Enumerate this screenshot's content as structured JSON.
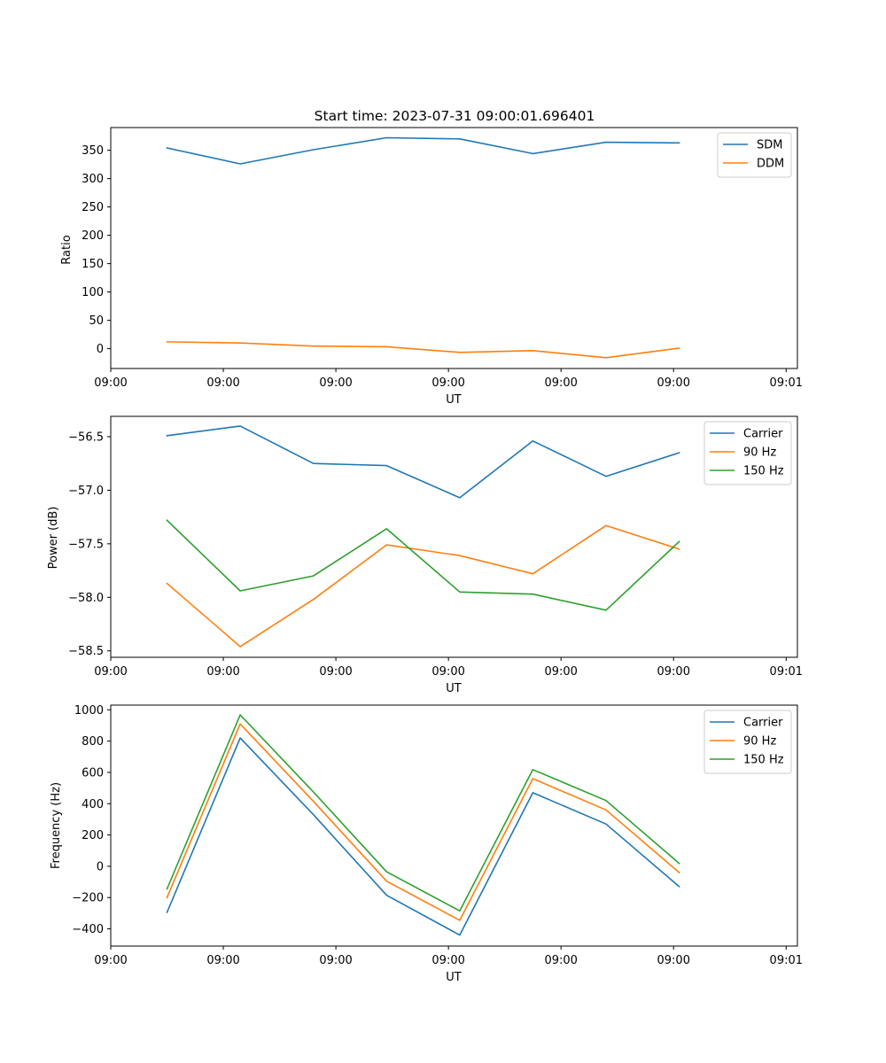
{
  "chart_data": [
    {
      "type": "line",
      "title": "Start time: 2023-07-31 09:00:01.696401",
      "xlabel": "UT",
      "ylabel": "Ratio",
      "xlim": [
        0,
        6.1
      ],
      "x": [
        0.5,
        1.15,
        1.8,
        2.45,
        3.1,
        3.75,
        4.4,
        5.05
      ],
      "xtick_values": [
        0,
        1,
        2,
        3,
        4,
        5,
        6
      ],
      "xtick_labels": [
        "09:00",
        "09:00",
        "09:00",
        "09:00",
        "09:00",
        "09:00",
        "09:01"
      ],
      "ylim": [
        -35,
        390
      ],
      "yticks": [
        0,
        50,
        100,
        150,
        200,
        250,
        300,
        350
      ],
      "legend_position": "top-right",
      "grid": false,
      "series": [
        {
          "name": "SDM",
          "color": "#1f77b4",
          "values": [
            354,
            326,
            351,
            372,
            370,
            344,
            364,
            363
          ]
        },
        {
          "name": "DDM",
          "color": "#ff7f0e",
          "values": [
            12,
            10,
            4.5,
            3.5,
            -6.5,
            -3.5,
            -16,
            1
          ]
        }
      ]
    },
    {
      "type": "line",
      "title": "",
      "xlabel": "UT",
      "ylabel": "Power (dB)",
      "xlim": [
        0,
        6.1
      ],
      "x": [
        0.5,
        1.15,
        1.8,
        2.45,
        3.1,
        3.75,
        4.4,
        5.05
      ],
      "xtick_values": [
        0,
        1,
        2,
        3,
        4,
        5,
        6
      ],
      "xtick_labels": [
        "09:00",
        "09:00",
        "09:00",
        "09:00",
        "09:00",
        "09:00",
        "09:01"
      ],
      "ylim": [
        -58.56,
        -56.31
      ],
      "yticks": [
        -58.5,
        -58.0,
        -57.5,
        -57.0,
        -56.5
      ],
      "ytick_labels": [
        "−58.5",
        "−58.0",
        "−57.5",
        "−57.0",
        "−56.5"
      ],
      "legend_position": "top-right",
      "grid": false,
      "series": [
        {
          "name": "Carrier",
          "color": "#1f77b4",
          "values": [
            -56.49,
            -56.4,
            -56.75,
            -56.77,
            -57.07,
            -56.54,
            -56.87,
            -56.65
          ]
        },
        {
          "name": "90 Hz",
          "color": "#ff7f0e",
          "values": [
            -57.87,
            -58.46,
            -58.02,
            -57.51,
            -57.61,
            -57.78,
            -57.33,
            -57.55
          ]
        },
        {
          "name": "150 Hz",
          "color": "#2ca02c",
          "values": [
            -57.28,
            -57.94,
            -57.8,
            -57.36,
            -57.95,
            -57.97,
            -58.12,
            -57.48
          ]
        }
      ]
    },
    {
      "type": "line",
      "title": "",
      "xlabel": "UT",
      "ylabel": "Frequency (Hz)",
      "xlim": [
        0,
        6.1
      ],
      "x": [
        0.5,
        1.15,
        1.8,
        2.45,
        3.1,
        3.75,
        4.4,
        5.05
      ],
      "xtick_values": [
        0,
        1,
        2,
        3,
        4,
        5,
        6
      ],
      "xtick_labels": [
        "09:00",
        "09:00",
        "09:00",
        "09:00",
        "09:00",
        "09:00",
        "09:01"
      ],
      "ylim": [
        -510,
        1030
      ],
      "yticks": [
        -400,
        -200,
        0,
        200,
        400,
        600,
        800,
        1000
      ],
      "ytick_labels": [
        "−400",
        "−200",
        "0",
        "200",
        "400",
        "600",
        "800",
        "1000"
      ],
      "legend_position": "top-right",
      "grid": false,
      "series": [
        {
          "name": "Carrier",
          "color": "#1f77b4",
          "values": [
            -295,
            820,
            330,
            -185,
            -440,
            470,
            270,
            -130
          ]
        },
        {
          "name": "90 Hz",
          "color": "#ff7f0e",
          "values": [
            -200,
            910,
            415,
            -95,
            -345,
            560,
            360,
            -40
          ]
        },
        {
          "name": "150 Hz",
          "color": "#2ca02c",
          "values": [
            -145,
            968,
            475,
            -35,
            -285,
            618,
            420,
            18
          ]
        }
      ]
    }
  ]
}
